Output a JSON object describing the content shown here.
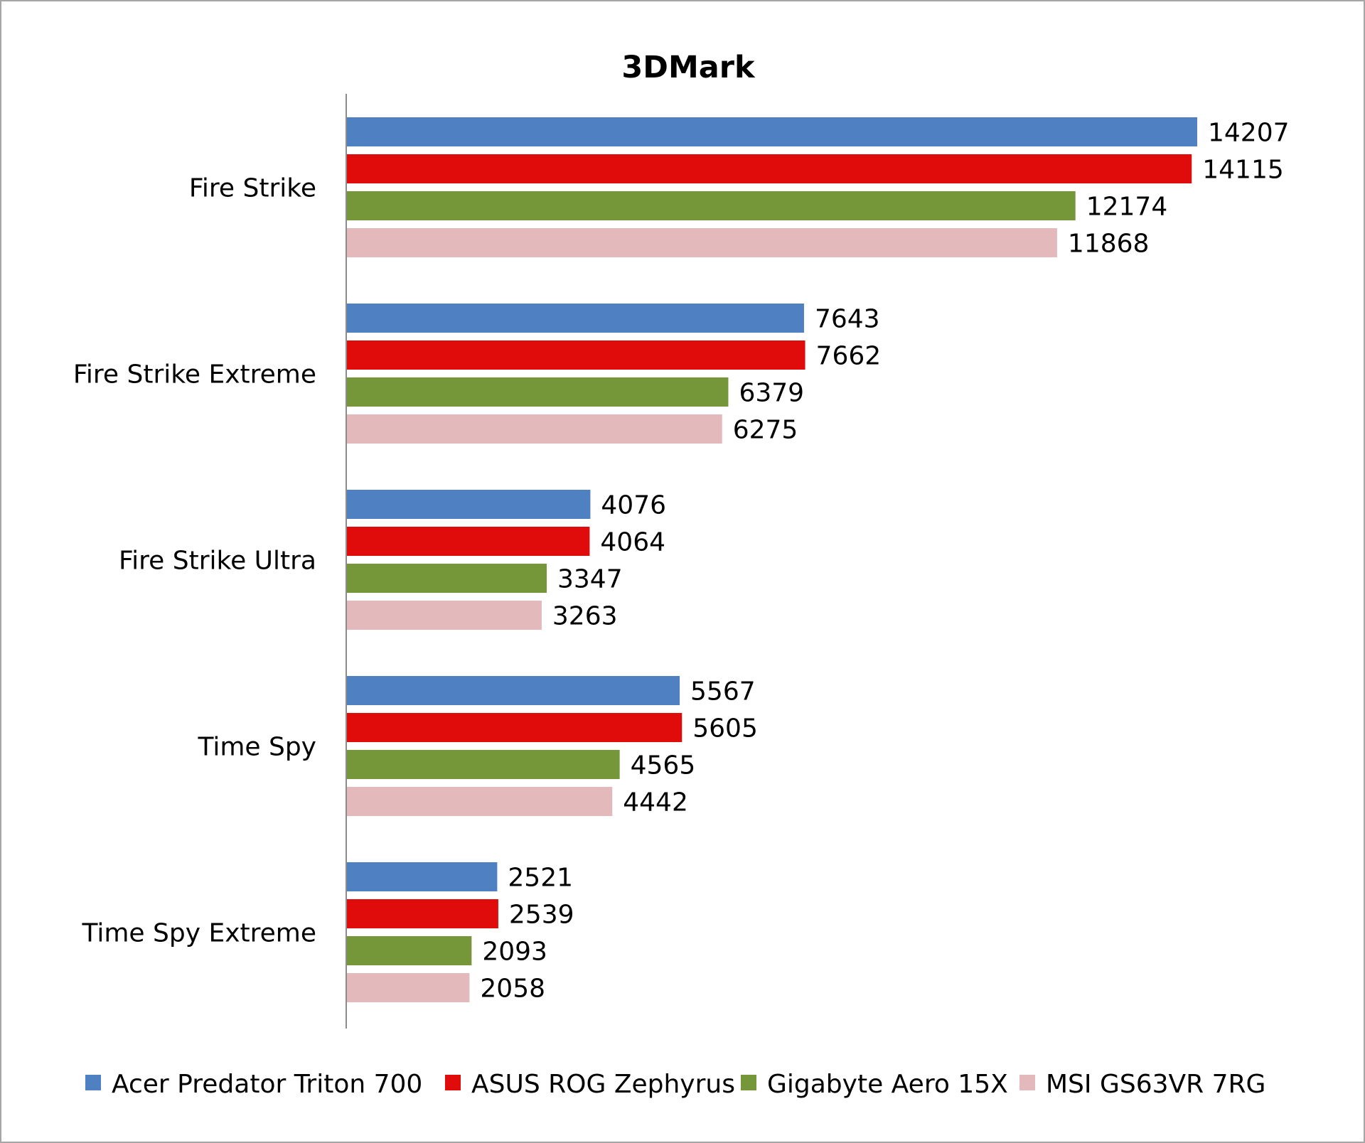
{
  "chart_data": {
    "type": "bar",
    "orientation": "horizontal",
    "title": "3DMark",
    "categories": [
      "Fire Strike",
      "Fire Strike Extreme",
      "Fire Strike Ultra",
      "Time Spy",
      "Time Spy Extreme"
    ],
    "series": [
      {
        "name": "Acer Predator Triton 700",
        "color": "#4f81c2",
        "values": [
          14207,
          7643,
          4076,
          5567,
          2521
        ]
      },
      {
        "name": "ASUS ROG Zephyrus",
        "color": "#e00b0b",
        "values": [
          14115,
          7662,
          4064,
          5605,
          2539
        ]
      },
      {
        "name": "Gigabyte Aero 15X",
        "color": "#76963a",
        "values": [
          12174,
          6379,
          3347,
          4565,
          2093
        ]
      },
      {
        "name": "MSI GS63VR 7RG",
        "color": "#e3b9bb",
        "values": [
          11868,
          6275,
          3263,
          4442,
          2058
        ]
      }
    ],
    "xlim": [
      0,
      14207
    ],
    "grid": false,
    "data_labels": true,
    "legend_position": "bottom"
  }
}
